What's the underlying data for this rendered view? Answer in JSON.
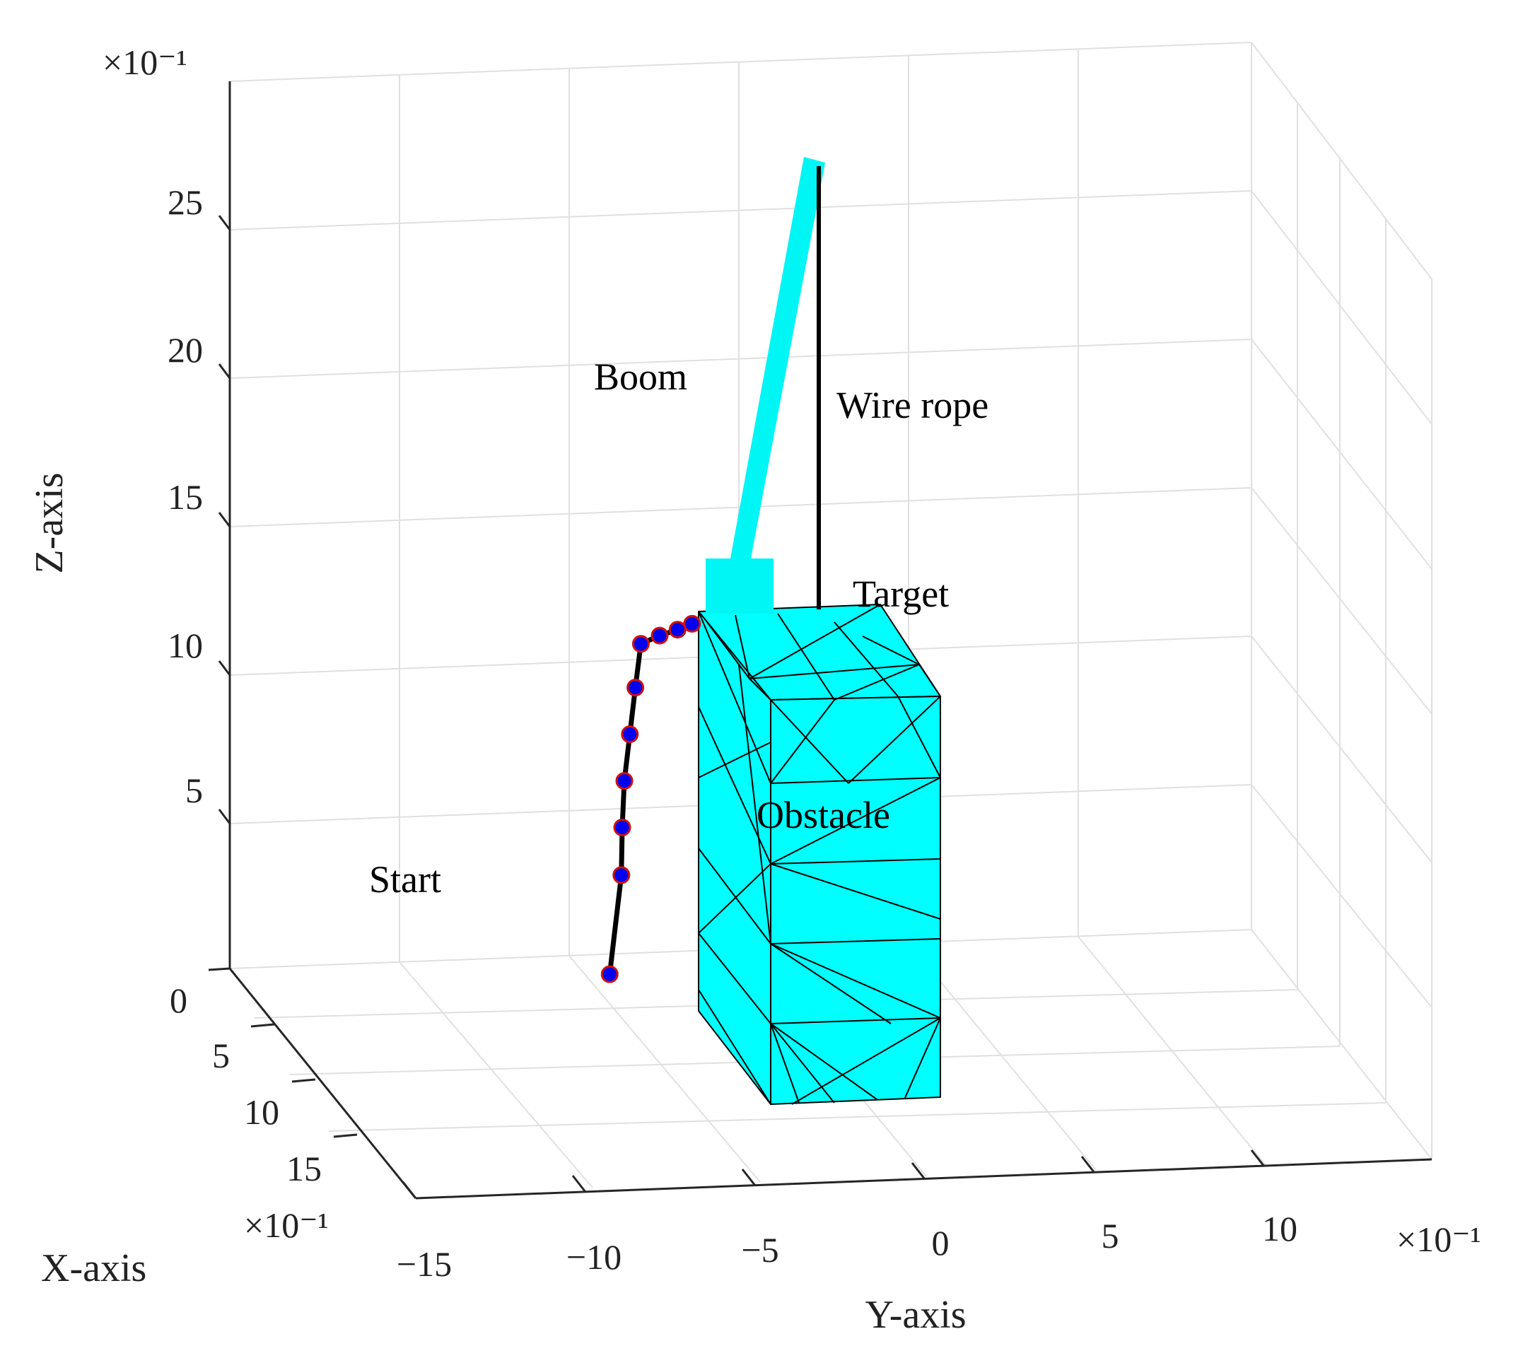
{
  "chart_data": {
    "type": "line3d",
    "title": "",
    "xlabel": "X-axis",
    "ylabel": "Y-axis",
    "zlabel": "Z-axis",
    "x_ticks": [
      "0",
      "5",
      "10",
      "15"
    ],
    "y_ticks": [
      "−15",
      "−10",
      "−5",
      "0",
      "5",
      "10"
    ],
    "z_ticks": [
      "5",
      "10",
      "15",
      "20",
      "25"
    ],
    "x_exponent": "×10⁻¹",
    "y_exponent": "×10⁻¹",
    "z_exponent": "×10⁻¹",
    "grid": true,
    "series": [
      {
        "type": "line-with-markers",
        "points": [
          [
            12.6,
            -8.4,
            4.2
          ],
          [
            9.7,
            -7.0,
            6.4
          ],
          [
            8.4,
            -6.5,
            7.5
          ],
          [
            7.2,
            -6.0,
            8.6
          ],
          [
            6.0,
            -5.4,
            9.7
          ],
          [
            4.8,
            -4.8,
            10.8
          ],
          [
            3.6,
            -4.2,
            11.8
          ],
          [
            3.2,
            -3.5,
            11.9
          ],
          [
            3.0,
            -2.9,
            12.0
          ],
          [
            2.8,
            -2.4,
            12.1
          ]
        ],
        "marker_fill": "#0000ee",
        "marker_edge": "#d01010",
        "line_color": "#000000"
      }
    ],
    "annotations": [
      {
        "id": "start",
        "text": "Start"
      },
      {
        "id": "target",
        "text": "Target"
      },
      {
        "id": "boom",
        "text": "Boom"
      },
      {
        "id": "wire",
        "text": "Wire rope"
      },
      {
        "id": "obstacle",
        "text": "Obstacle"
      }
    ],
    "colors": {
      "boom": "#00f5f5",
      "obstacle": "#00ffff",
      "obstacle_edge": "#000000",
      "grid": "#e0e0e0",
      "axis": "#262626"
    }
  }
}
